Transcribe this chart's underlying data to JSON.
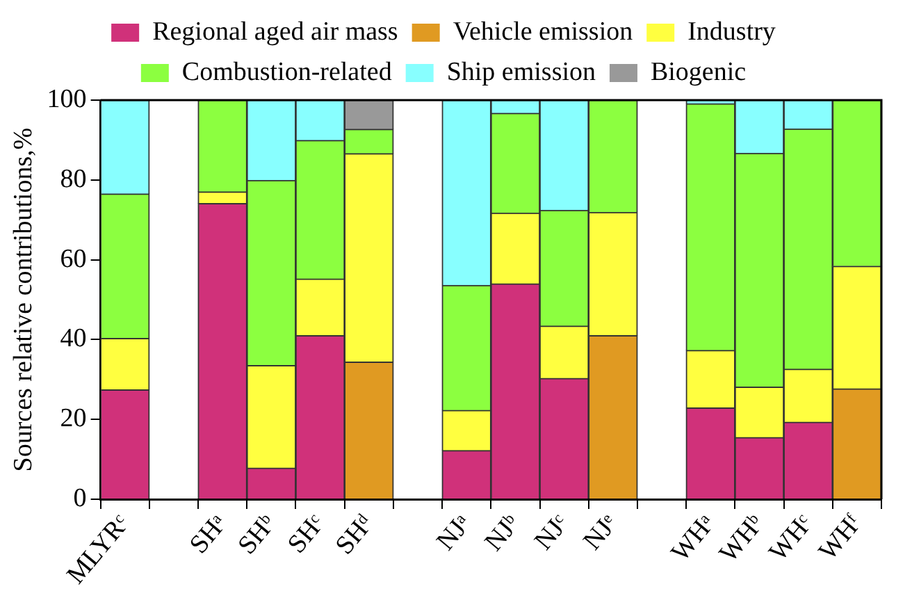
{
  "chart_data": {
    "type": "bar",
    "stacked": true,
    "ylabel": "Sources relative contributions,%",
    "categories": [
      "MLYRᶜ",
      null,
      "SHᵃ",
      "SHᵇ",
      "SHᶜ",
      "SHᵈ",
      null,
      "NJᵃ",
      "NJᵇ",
      "NJᶜ",
      "NJᵉ",
      null,
      "WHᵃ",
      "WHᵇ",
      "WHᶜ",
      "WHᶠ"
    ],
    "series": [
      {
        "name": "Regional aged air mass",
        "color": "#d0317a",
        "values": [
          27.4,
          null,
          74.1,
          7.8,
          41.0,
          null,
          null,
          12.2,
          54.0,
          30.3,
          null,
          null,
          22.9,
          15.5,
          19.3,
          null
        ]
      },
      {
        "name": "Vehicle emission",
        "color": "#e09a22",
        "values": [
          null,
          null,
          null,
          null,
          null,
          34.4,
          null,
          null,
          null,
          null,
          41.0,
          null,
          null,
          null,
          null,
          27.7
        ]
      },
      {
        "name": "Industry",
        "color": "#ffff40",
        "values": [
          12.9,
          null,
          2.9,
          25.7,
          14.2,
          52.2,
          null,
          10.1,
          17.7,
          13.1,
          30.9,
          null,
          14.4,
          12.6,
          13.3,
          30.7
        ]
      },
      {
        "name": "Combustion-related",
        "color": "#8cff40",
        "values": [
          36.2,
          null,
          23.0,
          46.4,
          34.7,
          6.1,
          null,
          31.3,
          25.0,
          29.0,
          28.1,
          null,
          61.8,
          58.6,
          60.2,
          41.6
        ]
      },
      {
        "name": "Ship emission",
        "color": "#88ffff",
        "values": [
          23.5,
          null,
          null,
          20.1,
          10.1,
          null,
          null,
          46.4,
          3.3,
          27.6,
          null,
          null,
          0.9,
          13.3,
          7.2,
          null
        ]
      },
      {
        "name": "Biogenic",
        "color": "#999999",
        "values": [
          null,
          null,
          null,
          null,
          null,
          7.3,
          null,
          null,
          null,
          null,
          null,
          null,
          null,
          null,
          null,
          null
        ]
      }
    ],
    "ylim": [
      0,
      100
    ],
    "yticks": [
      0,
      20,
      40,
      60,
      80,
      100
    ],
    "grid": false,
    "legend": "top"
  }
}
